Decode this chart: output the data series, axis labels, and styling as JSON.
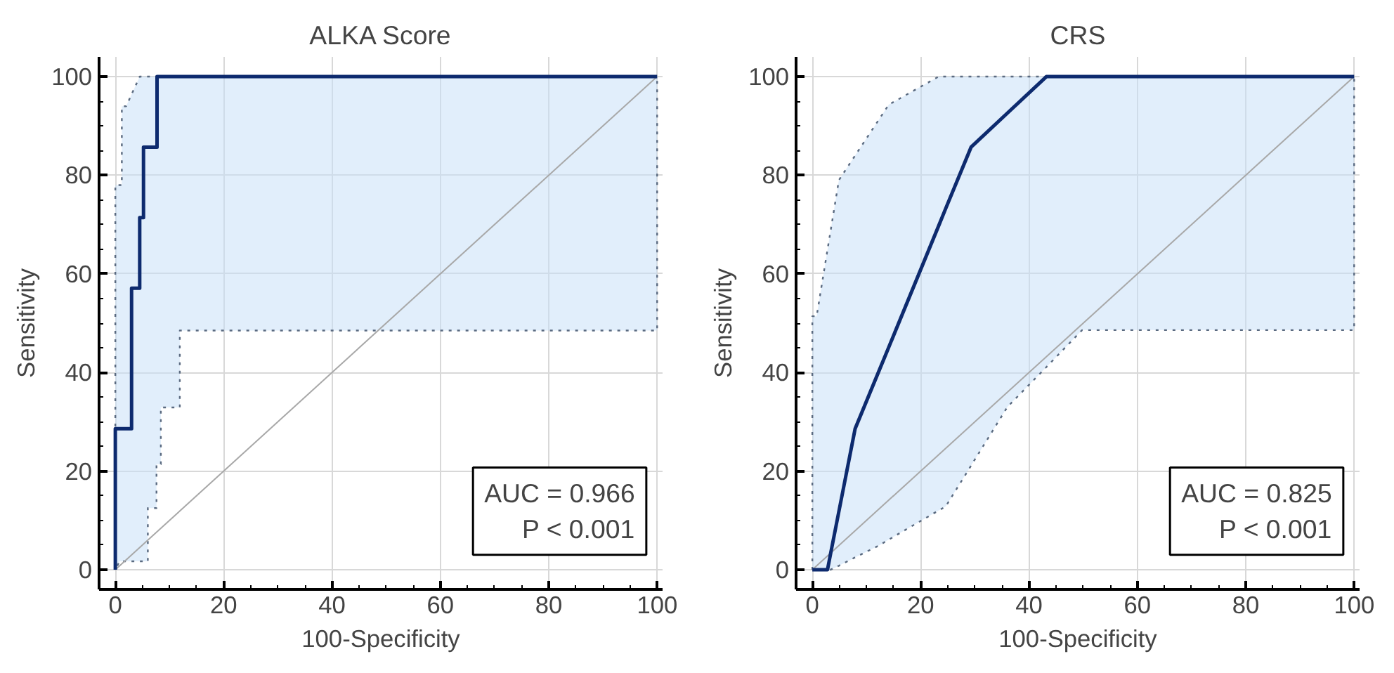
{
  "chart_data": [
    {
      "type": "line",
      "title": "ALKA Score",
      "xlabel": "100-Specificity",
      "ylabel": "Sensitivity",
      "xlim": [
        -3,
        101
      ],
      "ylim": [
        -4,
        104
      ],
      "xticks": [
        0,
        20,
        40,
        60,
        80,
        100
      ],
      "yticks": [
        0,
        20,
        40,
        60,
        80,
        100
      ],
      "grid": true,
      "marker": "none",
      "annotations": [
        "AUC = 0.966\nP < 0.001"
      ],
      "series": [
        {
          "type": "line",
          "color": "#a8a8a8",
          "line_style": "solid",
          "x": [
            0,
            100
          ],
          "values": [
            0,
            100
          ]
        },
        {
          "type": "line",
          "color": "#0d2a6e",
          "line_style": "solid",
          "x": [
            0,
            0,
            0.8,
            1.2,
            1.2,
            2,
            3,
            3,
            4.5,
            4.5,
            5.2,
            5.2,
            6,
            6,
            7.6,
            7.6,
            7.7,
            7.7,
            8.4,
            8.4,
            11.9,
            11.9,
            100
          ],
          "values": [
            0,
            28.6,
            28.6,
            28.6,
            28.6,
            28.6,
            28.6,
            57.1,
            57.1,
            71.4,
            71.4,
            85.7,
            85.7,
            85.7,
            85.7,
            85.7,
            85.7,
            100,
            100,
            100,
            100,
            100,
            100
          ],
          "lower": [
            0,
            0,
            1.7,
            1.7,
            1.7,
            1.7,
            1.7,
            1.7,
            1.7,
            1.7,
            1.7,
            1.7,
            1.7,
            12.5,
            12.5,
            21.4,
            21.4,
            21.4,
            21.4,
            32.9,
            32.9,
            48.5,
            48.5
          ],
          "upper": [
            0,
            78,
            78,
            78,
            94,
            94,
            96.4,
            96.4,
            100,
            100,
            100,
            100,
            100,
            100,
            100,
            100,
            100,
            100,
            100,
            100,
            100,
            100,
            100
          ]
        }
      ]
    },
    {
      "type": "line",
      "title": "CRS",
      "xlabel": "100-Specificity",
      "ylabel": "Sensitivity",
      "xlim": [
        -3,
        101
      ],
      "ylim": [
        -4,
        104
      ],
      "xticks": [
        0,
        20,
        40,
        60,
        80,
        100
      ],
      "yticks": [
        0,
        20,
        40,
        60,
        80,
        100
      ],
      "grid": true,
      "marker": "none",
      "annotations": [
        "AUC = 0.825\nP < 0.001"
      ],
      "series": [
        {
          "type": "line",
          "color": "#a8a8a8",
          "line_style": "solid",
          "x": [
            0,
            100
          ],
          "values": [
            0,
            100
          ]
        },
        {
          "type": "line",
          "color": "#0d2a6e",
          "line_style": "solid",
          "x": [
            0,
            0,
            0.8,
            2.8,
            3.4,
            4.9,
            7.9,
            12.3,
            14.1,
            23.3,
            24.6,
            29.3,
            36,
            43.2,
            49.8,
            100
          ],
          "values": [
            0,
            0,
            0,
            0,
            3.4,
            11.8,
            28.6,
            40.3,
            45.1,
            69.7,
            73.2,
            85.7,
            92.6,
            100,
            100,
            100
          ],
          "lower": [
            0,
            0,
            0,
            0,
            0,
            0.8,
            2.5,
            4.9,
            6.1,
            12.0,
            12.8,
            21.1,
            33,
            41.1,
            48.6,
            48.6
          ],
          "upper": [
            0,
            51.4,
            51.4,
            64.9,
            68.9,
            79,
            84.0,
            91.3,
            94.3,
            100,
            100,
            100,
            100,
            100,
            100,
            100
          ]
        }
      ]
    }
  ]
}
